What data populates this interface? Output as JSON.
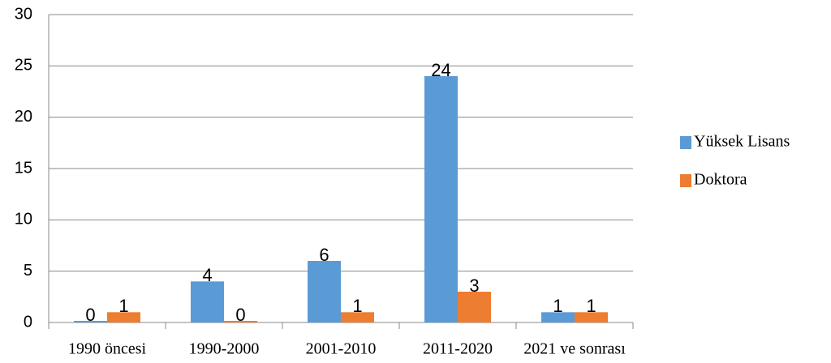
{
  "chart_data": {
    "type": "bar",
    "categories": [
      "1990 öncesi",
      "1990-2000",
      "2001-2010",
      "2011-2020",
      "2021 ve sonrası"
    ],
    "series": [
      {
        "name": "Yüksek Lisans",
        "color": "#5b9bd5",
        "values": [
          0,
          4,
          6,
          24,
          1
        ]
      },
      {
        "name": "Doktora",
        "color": "#ed7d31",
        "values": [
          1,
          0,
          1,
          3,
          1
        ]
      }
    ],
    "ylim": [
      0,
      30
    ],
    "yticks": [
      0,
      5,
      10,
      15,
      20,
      25,
      30
    ],
    "grid": true,
    "legend": "right"
  }
}
